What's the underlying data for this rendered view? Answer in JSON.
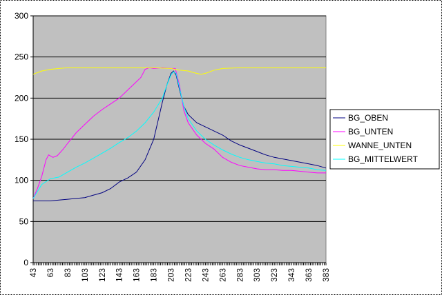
{
  "chart_data": {
    "type": "line",
    "title": "",
    "xlabel": "",
    "ylabel": "",
    "ylim": [
      0,
      300
    ],
    "yticks": [
      0,
      50,
      100,
      150,
      200,
      250,
      300
    ],
    "xlim": [
      43,
      383
    ],
    "xticks": [
      43,
      63,
      83,
      103,
      123,
      143,
      163,
      183,
      203,
      223,
      243,
      263,
      283,
      303,
      323,
      343,
      363,
      383
    ],
    "grid": "horizontal",
    "legend_position": "right",
    "plot_background": "#c0c0c0",
    "series": [
      {
        "name": "BG_OBEN",
        "color": "#000080",
        "points": [
          [
            43,
            75
          ],
          [
            53,
            75
          ],
          [
            63,
            75
          ],
          [
            73,
            76
          ],
          [
            83,
            77
          ],
          [
            93,
            78
          ],
          [
            103,
            79
          ],
          [
            113,
            82
          ],
          [
            123,
            85
          ],
          [
            133,
            90
          ],
          [
            143,
            98
          ],
          [
            153,
            103
          ],
          [
            163,
            110
          ],
          [
            173,
            125
          ],
          [
            183,
            150
          ],
          [
            193,
            195
          ],
          [
            198,
            215
          ],
          [
            203,
            230
          ],
          [
            206,
            233
          ],
          [
            209,
            228
          ],
          [
            213,
            210
          ],
          [
            218,
            190
          ],
          [
            223,
            180
          ],
          [
            233,
            170
          ],
          [
            243,
            165
          ],
          [
            253,
            160
          ],
          [
            263,
            155
          ],
          [
            273,
            148
          ],
          [
            283,
            143
          ],
          [
            293,
            139
          ],
          [
            303,
            135
          ],
          [
            313,
            131
          ],
          [
            323,
            128
          ],
          [
            333,
            126
          ],
          [
            343,
            124
          ],
          [
            353,
            122
          ],
          [
            363,
            120
          ],
          [
            373,
            118
          ],
          [
            383,
            115
          ]
        ]
      },
      {
        "name": "BG_UNTEN",
        "color": "#ff00ff",
        "points": [
          [
            43,
            78
          ],
          [
            48,
            90
          ],
          [
            53,
            105
          ],
          [
            58,
            125
          ],
          [
            61,
            131
          ],
          [
            66,
            128
          ],
          [
            71,
            130
          ],
          [
            78,
            138
          ],
          [
            83,
            145
          ],
          [
            93,
            158
          ],
          [
            103,
            168
          ],
          [
            113,
            178
          ],
          [
            123,
            186
          ],
          [
            133,
            193
          ],
          [
            143,
            200
          ],
          [
            153,
            210
          ],
          [
            163,
            220
          ],
          [
            168,
            225
          ],
          [
            173,
            235
          ],
          [
            178,
            237
          ],
          [
            183,
            236
          ],
          [
            193,
            237
          ],
          [
            203,
            236
          ],
          [
            208,
            236
          ],
          [
            213,
            215
          ],
          [
            218,
            185
          ],
          [
            223,
            170
          ],
          [
            233,
            155
          ],
          [
            243,
            145
          ],
          [
            253,
            138
          ],
          [
            263,
            128
          ],
          [
            273,
            122
          ],
          [
            283,
            118
          ],
          [
            293,
            116
          ],
          [
            303,
            114
          ],
          [
            313,
            113
          ],
          [
            323,
            113
          ],
          [
            333,
            112
          ],
          [
            343,
            112
          ],
          [
            353,
            111
          ],
          [
            363,
            110
          ],
          [
            373,
            109
          ],
          [
            383,
            109
          ]
        ]
      },
      {
        "name": "WANNE_UNTEN",
        "color": "#ffff00",
        "points": [
          [
            43,
            229
          ],
          [
            53,
            233
          ],
          [
            63,
            235
          ],
          [
            73,
            236
          ],
          [
            83,
            237
          ],
          [
            103,
            237
          ],
          [
            123,
            237
          ],
          [
            143,
            237
          ],
          [
            163,
            237
          ],
          [
            183,
            237
          ],
          [
            203,
            236
          ],
          [
            213,
            234
          ],
          [
            223,
            233
          ],
          [
            233,
            230
          ],
          [
            238,
            229
          ],
          [
            243,
            230
          ],
          [
            253,
            234
          ],
          [
            263,
            236
          ],
          [
            283,
            237
          ],
          [
            303,
            237
          ],
          [
            323,
            237
          ],
          [
            343,
            237
          ],
          [
            363,
            237
          ],
          [
            383,
            237
          ]
        ]
      },
      {
        "name": "BG_MITTELWERT",
        "color": "#00ffff",
        "points": [
          [
            43,
            78
          ],
          [
            53,
            95
          ],
          [
            63,
            102
          ],
          [
            73,
            104
          ],
          [
            83,
            110
          ],
          [
            93,
            116
          ],
          [
            103,
            121
          ],
          [
            113,
            127
          ],
          [
            123,
            133
          ],
          [
            133,
            139
          ],
          [
            143,
            146
          ],
          [
            153,
            152
          ],
          [
            163,
            160
          ],
          [
            173,
            170
          ],
          [
            183,
            183
          ],
          [
            193,
            200
          ],
          [
            198,
            215
          ],
          [
            203,
            228
          ],
          [
            206,
            232
          ],
          [
            209,
            230
          ],
          [
            213,
            212
          ],
          [
            218,
            190
          ],
          [
            223,
            175
          ],
          [
            233,
            160
          ],
          [
            243,
            150
          ],
          [
            253,
            143
          ],
          [
            263,
            137
          ],
          [
            273,
            132
          ],
          [
            283,
            128
          ],
          [
            293,
            125
          ],
          [
            303,
            123
          ],
          [
            313,
            121
          ],
          [
            323,
            120
          ],
          [
            333,
            118
          ],
          [
            343,
            117
          ],
          [
            353,
            116
          ],
          [
            363,
            115
          ],
          [
            373,
            113
          ],
          [
            383,
            112
          ]
        ]
      }
    ]
  }
}
